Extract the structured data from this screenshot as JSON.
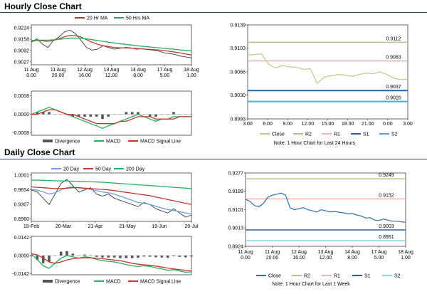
{
  "sections": {
    "hourly_title": "Hourly Close Chart",
    "daily_title": "Daily Close Chart"
  },
  "colors": {
    "close": "#b5cf85",
    "close_daily": "#2e6fad",
    "r2": "#c9b98a",
    "r1": "#e8b4ac",
    "s1": "#2a5fa0",
    "s2": "#4aa8d8",
    "s2_daily": "#8dd3e8",
    "ma20": "#c0392b",
    "ma50": "#27ae60",
    "day20": "#6aa0d8",
    "day50": "#c0392b",
    "day200": "#27ae60",
    "macd": "#27ae60",
    "signal": "#c0392b",
    "divergence": "#555555"
  },
  "chart_data": [
    {
      "id": "hourly_price",
      "type": "line",
      "x_ticks": [
        "11 Aug\n0.00",
        "11 Aug\n20.00",
        "12 Aug\n16.00",
        "13 Aug\n12.00",
        "14 Aug\n8.00",
        "17 Aug\n5.00",
        "18 Aug\n1.00"
      ],
      "y_ticks": [
        "0.9224",
        "0.9158",
        "0.9092",
        "0.9027"
      ],
      "ylim": [
        0.901,
        0.924
      ],
      "legend": [
        "20 Hr MA",
        "50 Hrs MA"
      ],
      "series": [
        {
          "name": "Close",
          "values": [
            0.914,
            0.916,
            0.913,
            0.911,
            0.915,
            0.917,
            0.92,
            0.921,
            0.919,
            0.915,
            0.911,
            0.9095,
            0.91,
            0.912,
            0.911,
            0.91,
            0.9105,
            0.911,
            0.9108,
            0.91,
            0.9102,
            0.9098,
            0.9095,
            0.909,
            0.908,
            0.9075,
            0.907,
            0.906,
            0.9055,
            0.905
          ]
        },
        {
          "name": "20 Hr MA",
          "values": [
            0.9145,
            0.915,
            0.9148,
            0.9145,
            0.915,
            0.916,
            0.9172,
            0.918,
            0.9178,
            0.917,
            0.9155,
            0.914,
            0.9128,
            0.912,
            0.9115,
            0.911,
            0.9108,
            0.9107,
            0.9106,
            0.9104,
            0.9102,
            0.91,
            0.9098,
            0.9096,
            0.9092,
            0.9088,
            0.9083,
            0.9078,
            0.9072,
            0.9066
          ]
        },
        {
          "name": "50 Hrs MA",
          "values": [
            0.915,
            0.9152,
            0.9152,
            0.9152,
            0.9154,
            0.9157,
            0.916,
            0.9163,
            0.9164,
            0.9163,
            0.916,
            0.9155,
            0.915,
            0.9145,
            0.914,
            0.9136,
            0.9132,
            0.9128,
            0.9124,
            0.912,
            0.9117,
            0.9114,
            0.9111,
            0.9108,
            0.9105,
            0.9102,
            0.9099,
            0.9096,
            0.9093,
            0.909
          ]
        }
      ]
    },
    {
      "id": "hourly_macd",
      "type": "line",
      "y_ticks": [
        "0.0008",
        "0.0000",
        "-0.0008"
      ],
      "ylim": [
        -0.0009,
        0.001
      ],
      "legend": [
        "Divergence",
        "MACD",
        "MACD Signal Line"
      ],
      "series": [
        {
          "name": "MACD",
          "values": [
            0.0,
            0.0001,
            0.0002,
            0.0003,
            0.0002,
            0.0001,
            0.0,
            -0.0001,
            -0.0002,
            -0.0003,
            -0.0004,
            -0.0005,
            -0.0006,
            -0.0005,
            -0.0004,
            -0.0003,
            -0.0002,
            -0.0001,
            0.0,
            -0.0001,
            -0.0002,
            -0.0003,
            -0.0002,
            -0.0002,
            -0.0001,
            -0.0001,
            -0.0001,
            -0.0001
          ]
        },
        {
          "name": "MACD Signal Line",
          "values": [
            0.0,
            0.0,
            0.0001,
            0.0002,
            0.0002,
            0.0001,
            0.0,
            0.0,
            -0.0001,
            -0.0002,
            -0.0003,
            -0.0004,
            -0.0004,
            -0.0004,
            -0.0004,
            -0.0003,
            -0.0003,
            -0.0002,
            -0.0001,
            -0.0001,
            -0.0001,
            -0.0002,
            -0.0002,
            -0.0002,
            -0.0002,
            -0.0001,
            -0.0001,
            -0.0001
          ]
        },
        {
          "name": "Divergence",
          "values": [
            0.0,
            0.0001,
            0.0001,
            0.0001,
            0.0,
            0.0,
            0.0,
            -0.0001,
            -0.0001,
            -0.0001,
            -0.0001,
            -0.0001,
            -0.0002,
            -0.0001,
            0.0,
            0.0,
            0.0001,
            0.0001,
            0.0001,
            0.0,
            -0.0001,
            -0.0001,
            0.0,
            0.0,
            0.0001,
            0.0,
            0.0,
            0.0
          ]
        }
      ]
    },
    {
      "id": "hourly_pivot",
      "type": "line",
      "x_ticks": [
        "3.00",
        "6.00",
        "9.00",
        "12.00",
        "15.00",
        "18.00",
        "21.00",
        "0.00",
        "3.00"
      ],
      "y_ticks": [
        "0.9139",
        "0.9103",
        "0.9066",
        "0.9030",
        "0.8993"
      ],
      "ylim": [
        0.8993,
        0.9139
      ],
      "level_labels": {
        "r2": "0.9112",
        "r1": "0.9083",
        "s1": "0.9037",
        "s2": "0.9020"
      },
      "levels": {
        "r2": 0.9112,
        "r1": 0.9083,
        "s1": 0.9037,
        "s2": 0.902
      },
      "legend": [
        "Close",
        "R2",
        "R1",
        "S1",
        "S2"
      ],
      "note": "Note: 1 Hour Chart for Last 24 Hours",
      "series": [
        {
          "name": "Close",
          "values": [
            0.9092,
            0.9093,
            0.9094,
            0.9078,
            0.9072,
            0.9076,
            0.9074,
            0.9073,
            0.907,
            0.9071,
            0.9048,
            0.9058,
            0.906,
            0.9062,
            0.9061,
            0.9059,
            0.9062,
            0.9064,
            0.9063,
            0.9066,
            0.9062,
            0.9056,
            0.9054,
            0.9055
          ]
        }
      ]
    },
    {
      "id": "daily_price",
      "type": "line",
      "x_ticks": [
        "19-Feb",
        "20-Mar",
        "21-Apr",
        "21-May",
        "19-Jun",
        "20-Jul"
      ],
      "y_ticks": [
        "1.0001",
        "0.9654",
        "0.9307",
        "0.8960"
      ],
      "ylim": [
        0.89,
        1.005
      ],
      "legend": [
        "20 Day",
        "50 Day",
        "200 Day"
      ],
      "series": [
        {
          "name": "Close",
          "values": [
            0.965,
            0.96,
            0.945,
            0.93,
            0.955,
            0.98,
            0.99,
            0.975,
            0.96,
            0.965,
            0.97,
            0.955,
            0.95,
            0.955,
            0.945,
            0.94,
            0.935,
            0.93,
            0.925,
            0.935,
            0.93,
            0.92,
            0.915,
            0.91,
            0.92,
            0.91,
            0.9,
            0.905
          ]
        },
        {
          "name": "20 Day",
          "values": [
            0.966,
            0.964,
            0.96,
            0.955,
            0.958,
            0.965,
            0.97,
            0.972,
            0.97,
            0.968,
            0.966,
            0.963,
            0.96,
            0.958,
            0.955,
            0.95,
            0.945,
            0.94,
            0.935,
            0.933,
            0.93,
            0.926,
            0.922,
            0.918,
            0.916,
            0.913,
            0.91,
            0.908
          ]
        },
        {
          "name": "50 Day",
          "values": [
            0.972,
            0.971,
            0.97,
            0.969,
            0.968,
            0.968,
            0.969,
            0.97,
            0.97,
            0.969,
            0.968,
            0.967,
            0.966,
            0.965,
            0.963,
            0.961,
            0.959,
            0.957,
            0.955,
            0.953,
            0.951,
            0.948,
            0.945,
            0.942,
            0.939,
            0.936,
            0.933,
            0.93
          ]
        },
        {
          "name": "200 Day",
          "values": [
            0.988,
            0.988,
            0.9875,
            0.987,
            0.9865,
            0.986,
            0.986,
            0.9855,
            0.985,
            0.9845,
            0.984,
            0.9835,
            0.983,
            0.982,
            0.981,
            0.98,
            0.979,
            0.978,
            0.977,
            0.976,
            0.975,
            0.974,
            0.973,
            0.972,
            0.971,
            0.97,
            0.969,
            0.968
          ]
        }
      ]
    },
    {
      "id": "daily_macd",
      "type": "line",
      "y_ticks": [
        "0.0142",
        "0.0000",
        "-0.0142"
      ],
      "ylim": [
        -0.015,
        0.015
      ],
      "legend": [
        "Divergence",
        "MACD",
        "MACD Signal Line"
      ],
      "series": [
        {
          "name": "MACD",
          "values": [
            0.001,
            -0.003,
            -0.008,
            -0.01,
            -0.006,
            -0.002,
            0.0,
            -0.001,
            -0.002,
            -0.001,
            -0.0015,
            -0.003,
            -0.004,
            -0.0045,
            -0.005,
            -0.006,
            -0.007,
            -0.008,
            -0.0085,
            -0.008,
            -0.0085,
            -0.0095,
            -0.0105,
            -0.0115,
            -0.011,
            -0.012,
            -0.013,
            -0.0128
          ]
        },
        {
          "name": "MACD Signal Line",
          "values": [
            0.0015,
            0.0005,
            -0.002,
            -0.005,
            -0.006,
            -0.005,
            -0.0035,
            -0.0025,
            -0.002,
            -0.0018,
            -0.0018,
            -0.002,
            -0.0025,
            -0.003,
            -0.0035,
            -0.004,
            -0.005,
            -0.006,
            -0.0068,
            -0.0072,
            -0.0076,
            -0.0082,
            -0.009,
            -0.0098,
            -0.0104,
            -0.011,
            -0.0116,
            -0.012
          ]
        },
        {
          "name": "Divergence",
          "values": [
            -0.0005,
            -0.0035,
            -0.006,
            -0.005,
            0.0,
            0.003,
            0.0035,
            0.0015,
            0.0,
            0.0008,
            0.0003,
            -0.001,
            -0.0015,
            -0.0015,
            -0.0015,
            -0.002,
            -0.002,
            -0.002,
            -0.0017,
            -0.0008,
            -0.0009,
            -0.0013,
            -0.0015,
            -0.0017,
            -0.0006,
            -0.001,
            -0.0014,
            -0.0008
          ]
        }
      ]
    },
    {
      "id": "daily_pivot",
      "type": "line",
      "x_ticks": [
        "11 Aug\n0.00",
        "11 Aug\n20.00",
        "12 Aug\n16.00",
        "13 Aug\n12.00",
        "14 Aug\n8.00",
        "17 Aug\n5.00",
        "18 Aug\n1.00"
      ],
      "y_ticks": [
        "0.9277",
        "0.9189",
        "0.9101",
        "0.9013",
        "0.8924"
      ],
      "ylim": [
        0.8924,
        0.9277
      ],
      "level_labels": {
        "r2": "0.9249",
        "r1": "0.9152",
        "s1": "0.9003",
        "s2": "0.8951"
      },
      "levels": {
        "r2": 0.9249,
        "r1": 0.9152,
        "s1": 0.9003,
        "s2": 0.8951
      },
      "legend": [
        "Close",
        "R2",
        "R1",
        "S1",
        "S2"
      ],
      "note": "Note: 1 Hour Chart for Last 1 Week",
      "series": [
        {
          "name": "Close",
          "values": [
            0.915,
            0.914,
            0.912,
            0.9115,
            0.913,
            0.916,
            0.917,
            0.9175,
            0.918,
            0.917,
            0.911,
            0.91,
            0.9105,
            0.911,
            0.91,
            0.9095,
            0.909,
            0.91,
            0.9095,
            0.909,
            0.9092,
            0.9088,
            0.9085,
            0.908,
            0.9082,
            0.9075,
            0.907,
            0.906,
            0.9062,
            0.905,
            0.9048,
            0.9055,
            0.905,
            0.9045,
            0.9045,
            0.9042,
            0.904
          ]
        }
      ]
    }
  ]
}
